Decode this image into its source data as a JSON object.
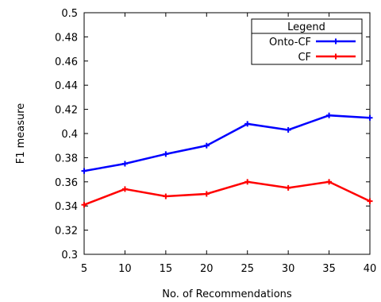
{
  "chart_data": {
    "type": "line",
    "title": "",
    "xlabel": "No. of Recommendations",
    "ylabel": "F1 measure",
    "x": [
      5,
      10,
      15,
      20,
      25,
      30,
      35,
      40
    ],
    "xlim": [
      5,
      40
    ],
    "ylim": [
      0.3,
      0.5
    ],
    "x_ticks": [
      "5",
      "10",
      "15",
      "20",
      "25",
      "30",
      "35",
      "40"
    ],
    "y_ticks": [
      "0.3",
      "0.32",
      "0.34",
      "0.36",
      "0.38",
      "0.4",
      "0.42",
      "0.44",
      "0.46",
      "0.48",
      "0.5"
    ],
    "grid": false,
    "legend": {
      "title": "Legend",
      "placement": "top-right"
    },
    "series": [
      {
        "name": "Onto-CF",
        "color": "#0000ff",
        "marker": "plus",
        "values": [
          0.369,
          0.375,
          0.383,
          0.39,
          0.408,
          0.403,
          0.415,
          0.413
        ]
      },
      {
        "name": "CF",
        "color": "#ff0000",
        "marker": "plus",
        "values": [
          0.341,
          0.354,
          0.348,
          0.35,
          0.36,
          0.355,
          0.36,
          0.344
        ]
      }
    ]
  }
}
